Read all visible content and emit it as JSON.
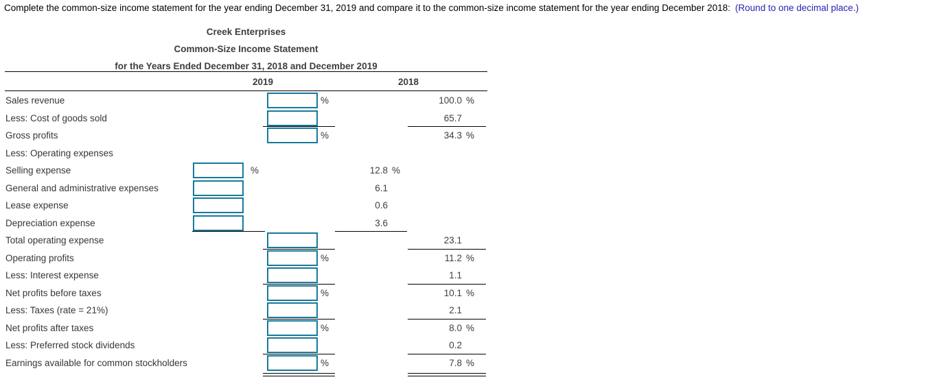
{
  "instruction": {
    "text": "Complete the common-size income statement for the year ending December 31, 2019 and compare it to the common-size income statement for the year ending December 2018:",
    "hint": "(Round to one decimal place.)"
  },
  "statement": {
    "company": "Creek Enterprises",
    "title": "Common-Size Income Statement",
    "subtitle": "for the Years Ended December 31, 2018 and December 2019",
    "columns": [
      "2019",
      "2018"
    ],
    "percent_symbol": "%",
    "rows": [
      {
        "label": "Sales revenue",
        "input": "outer",
        "input_pct": true,
        "input_value": "",
        "value_2018": "100.0",
        "value_pct": true,
        "rule": "none"
      },
      {
        "label": "Less: Cost of goods sold",
        "input": "outer",
        "input_pct": false,
        "input_value": "",
        "value_2018": "65.7",
        "value_pct": false,
        "rule": "single"
      },
      {
        "label": "Gross profits",
        "input": "outer",
        "input_pct": true,
        "input_value": "",
        "value_2018": "34.3",
        "value_pct": true,
        "rule": "none"
      },
      {
        "label": "Less: Operating expenses",
        "input": null,
        "input_pct": false,
        "input_value": "",
        "value_2018": null,
        "value_pct": false,
        "rule": "none"
      },
      {
        "label": "Selling expense",
        "input": "inner",
        "input_pct": true,
        "input_value": "",
        "value_2018": "12.8",
        "value_pct": true,
        "rule": "none"
      },
      {
        "label": "General and administrative expenses",
        "input": "inner",
        "input_pct": false,
        "input_value": "",
        "value_2018": "6.1",
        "value_pct": false,
        "rule": "none"
      },
      {
        "label": "Lease expense",
        "input": "inner",
        "input_pct": false,
        "input_value": "",
        "value_2018": "0.6",
        "value_pct": false,
        "rule": "none"
      },
      {
        "label": "Depreciation expense",
        "input": "inner",
        "input_pct": false,
        "input_value": "",
        "value_2018": "3.6",
        "value_pct": false,
        "rule": "single"
      },
      {
        "label": "Total operating expense",
        "input": "outer",
        "input_pct": false,
        "input_value": "",
        "value_2018": "23.1",
        "value_pct": false,
        "rule": "single"
      },
      {
        "label": "Operating profits",
        "input": "outer",
        "input_pct": true,
        "input_value": "",
        "value_2018": "11.2",
        "value_pct": true,
        "rule": "none"
      },
      {
        "label": "Less: Interest expense",
        "input": "outer",
        "input_pct": false,
        "input_value": "",
        "value_2018": "1.1",
        "value_pct": false,
        "rule": "single"
      },
      {
        "label": "Net profits before taxes",
        "input": "outer",
        "input_pct": true,
        "input_value": "",
        "value_2018": "10.1",
        "value_pct": true,
        "rule": "none"
      },
      {
        "label": "Less: Taxes (rate = 21%)",
        "input": "outer",
        "input_pct": false,
        "input_value": "",
        "value_2018": "2.1",
        "value_pct": false,
        "rule": "single"
      },
      {
        "label": "Net profits after taxes",
        "input": "outer",
        "input_pct": true,
        "input_value": "",
        "value_2018": "8.0",
        "value_pct": true,
        "rule": "none"
      },
      {
        "label": "Less: Preferred stock dividends",
        "input": "outer",
        "input_pct": false,
        "input_value": "",
        "value_2018": "0.2",
        "value_pct": false,
        "rule": "single"
      },
      {
        "label": "Earnings available for common stockholders",
        "input": "outer",
        "input_pct": true,
        "input_value": "",
        "value_2018": "7.8",
        "value_pct": true,
        "rule": "double"
      }
    ]
  },
  "colors": {
    "input_border": "#15799b",
    "hint_blue": "#2b22b5",
    "rule_black": "#000000",
    "text_gray": "#363636"
  }
}
